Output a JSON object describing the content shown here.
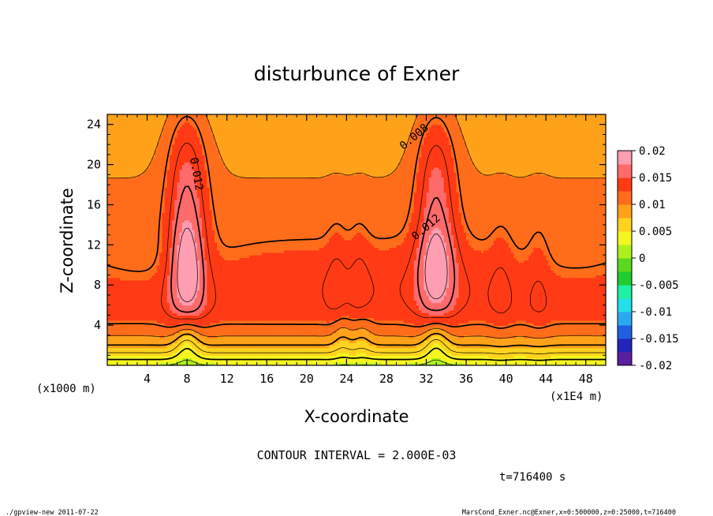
{
  "chart_data": {
    "type": "heatmap",
    "title": "disturbunce of Exner",
    "xlabel": "X-coordinate",
    "ylabel": "Z-coordinate",
    "x_unit_left": "(x1000 m)",
    "x_unit_right": "(x1E4 m)",
    "xlim": [
      0,
      50
    ],
    "ylim": [
      0,
      25
    ],
    "xticks": [
      "4",
      "8",
      "12",
      "16",
      "20",
      "24",
      "28",
      "32",
      "36",
      "40",
      "44",
      "48"
    ],
    "xtick_values": [
      4,
      8,
      12,
      16,
      20,
      24,
      28,
      32,
      36,
      40,
      44,
      48
    ],
    "yticks": [
      "4",
      "8",
      "12",
      "16",
      "20",
      "24"
    ],
    "ytick_values": [
      4,
      8,
      12,
      16,
      20,
      24
    ],
    "colorbar": {
      "labels": [
        "0.02",
        "0.015",
        "0.01",
        "0.005",
        "0",
        "-0.005",
        "-0.01",
        "-0.015",
        "-0.02"
      ],
      "values": [
        0.02,
        0.015,
        0.01,
        0.005,
        0,
        -0.005,
        -0.01,
        -0.015,
        -0.02
      ],
      "range": [
        -0.02,
        0.02
      ]
    },
    "contour_labels": [
      {
        "text": "0.008",
        "x": 31.0,
        "z": 22.5
      },
      {
        "text": "0.012",
        "x": 32.2,
        "z": 13.5
      },
      {
        "text": "0.012",
        "x": 8.6,
        "z": 19.0
      }
    ],
    "contour_interval_text": "CONTOUR INTERVAL = 2.000E-03",
    "time_text": "t=716400 s",
    "footer_left": "./gpview-new  2011-07-22",
    "footer_right": "MarsCond_Exner.nc@Exner,x=0:500000,z=0:25000,t=716400"
  }
}
